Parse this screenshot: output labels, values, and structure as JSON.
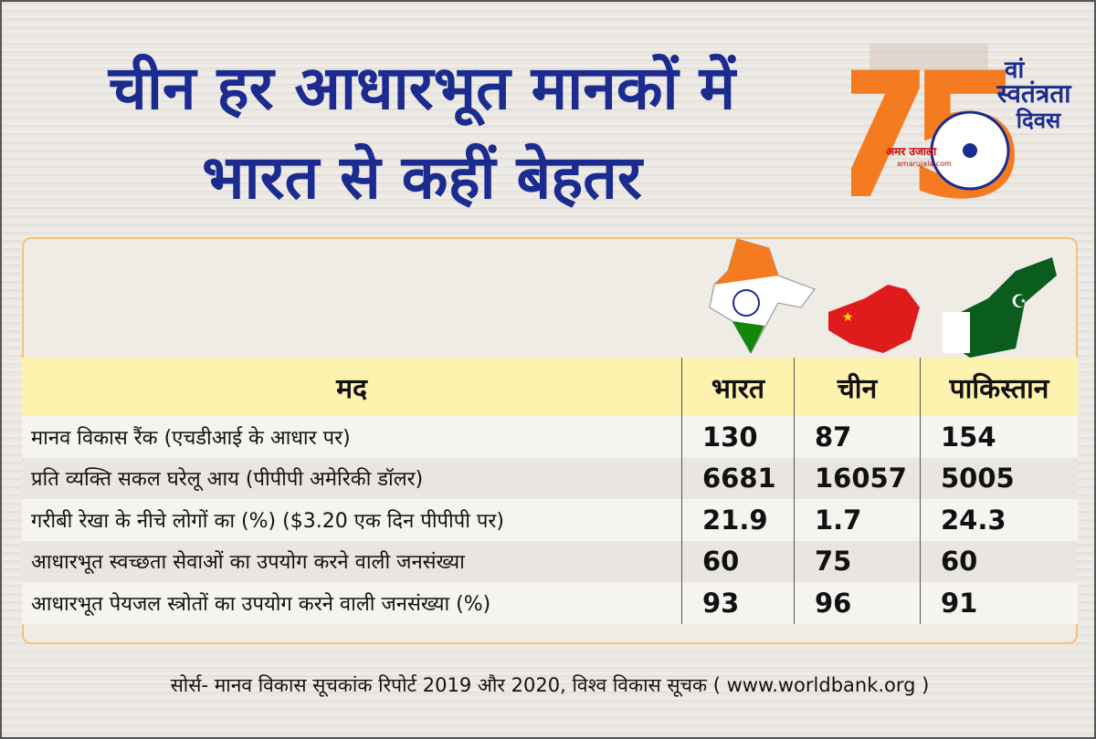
{
  "header": {
    "title_lines": [
      "चीन हर आधारभूत मानकों में",
      "भारत से कहीं बेहतर"
    ]
  },
  "logo": {
    "number": "75",
    "suffix": "वां",
    "line1": "स्वतंत्रता",
    "line2": "दिवस",
    "brand": "अमर उजाला",
    "brand_site": "amarujala.com"
  },
  "table": {
    "columns": [
      "मद",
      "भारत",
      "चीन",
      "पाकिस्तान"
    ],
    "rows": [
      [
        "मानव विकास रैंक (एचडीआई के आधार पर)",
        130,
        87,
        154
      ],
      [
        "प्रति व्यक्ति सकल घरेलू आय (पीपीपी अमेरिकी डॉलर)",
        6681,
        16057,
        5005
      ],
      [
        "गरीबी रेखा के नीचे लोगों का (%) ($3.20 एक दिन पीपीपी पर)",
        21.9,
        1.7,
        24.3
      ],
      [
        "आधारभूत स्वच्छता सेवाओं का उपयोग करने वाली जनसंख्या",
        60,
        75,
        60
      ],
      [
        "आधारभूत पेयजल स्त्रोतों का उपयोग करने वाली जनसंख्या (%)",
        93,
        96,
        91
      ]
    ]
  },
  "footer": {
    "source": "सोर्स- मानव विकास सूचकांक रिपोर्ट 2019 और 2020, विश्व विकास सूचक ( www.worldbank.org )"
  }
}
